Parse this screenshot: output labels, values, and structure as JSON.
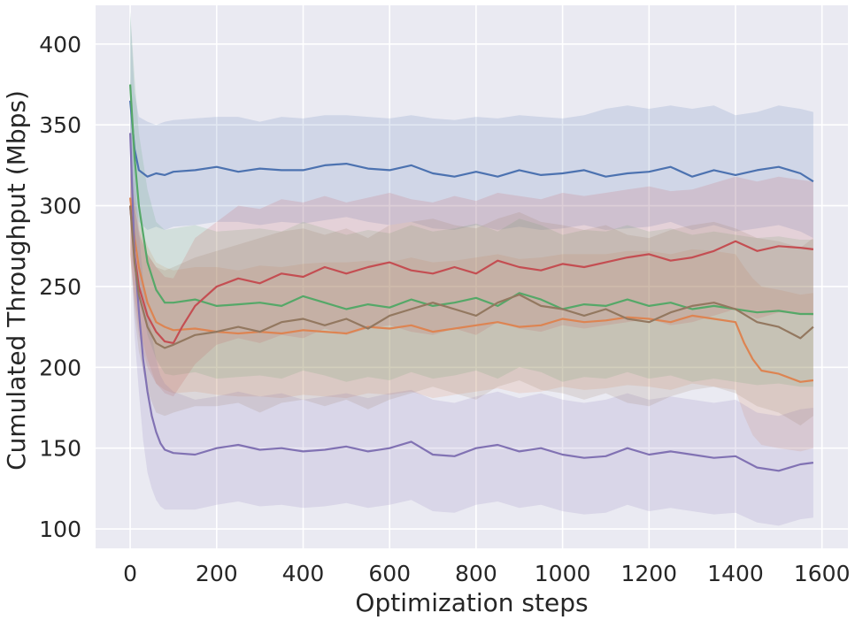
{
  "chart_data": {
    "type": "line",
    "title": "",
    "xlabel": "Optimization steps",
    "ylabel": "Cumulated Throughput (Mbps)",
    "xlim": [
      -80,
      1660
    ],
    "ylim": [
      88,
      424
    ],
    "xticks": [
      0,
      200,
      400,
      600,
      800,
      1000,
      1200,
      1400,
      1600
    ],
    "yticks": [
      100,
      150,
      200,
      250,
      300,
      350,
      400
    ],
    "grid": true,
    "legend": "none",
    "background_color": "#eaeaf2",
    "series": [
      {
        "color": "#4c72b0",
        "x": [
          0,
          10,
          20,
          40,
          60,
          80,
          100,
          150,
          200,
          250,
          300,
          350,
          400,
          450,
          500,
          550,
          600,
          650,
          700,
          750,
          800,
          850,
          900,
          950,
          1000,
          1050,
          1100,
          1150,
          1200,
          1250,
          1300,
          1350,
          1400,
          1450,
          1500,
          1550,
          1580
        ],
        "y": [
          365,
          335,
          322,
          318,
          320,
          319,
          321,
          322,
          324,
          321,
          323,
          322,
          322,
          325,
          326,
          323,
          322,
          325,
          320,
          318,
          321,
          318,
          322,
          319,
          320,
          322,
          318,
          320,
          321,
          324,
          318,
          322,
          319,
          322,
          324,
          320,
          315
        ],
        "upper": [
          420,
          370,
          355,
          352,
          350,
          352,
          353,
          354,
          355,
          355,
          352,
          355,
          354,
          356,
          356,
          355,
          354,
          356,
          354,
          353,
          355,
          354,
          356,
          355,
          354,
          356,
          360,
          362,
          360,
          362,
          360,
          362,
          356,
          358,
          362,
          360,
          358
        ],
        "lower": [
          330,
          300,
          290,
          285,
          287,
          285,
          287,
          288,
          290,
          290,
          288,
          290,
          289,
          291,
          293,
          290,
          288,
          290,
          286,
          285,
          288,
          285,
          287,
          285,
          286,
          288,
          285,
          286,
          287,
          290,
          285,
          288,
          284,
          286,
          288,
          284,
          280
        ]
      },
      {
        "color": "#dd8452",
        "x": [
          0,
          10,
          20,
          40,
          60,
          80,
          100,
          150,
          200,
          250,
          300,
          350,
          400,
          450,
          500,
          550,
          600,
          650,
          700,
          750,
          800,
          850,
          900,
          950,
          1000,
          1050,
          1100,
          1150,
          1200,
          1250,
          1300,
          1350,
          1400,
          1420,
          1440,
          1460,
          1500,
          1550,
          1580
        ],
        "y": [
          305,
          280,
          262,
          240,
          228,
          225,
          223,
          224,
          222,
          221,
          222,
          221,
          223,
          222,
          221,
          225,
          224,
          226,
          222,
          224,
          226,
          228,
          225,
          226,
          230,
          228,
          229,
          231,
          230,
          228,
          232,
          230,
          228,
          215,
          205,
          198,
          196,
          191,
          192
        ],
        "upper": [
          330,
          305,
          290,
          275,
          265,
          262,
          260,
          262,
          262,
          260,
          263,
          262,
          264,
          265,
          265,
          266,
          265,
          268,
          265,
          266,
          268,
          270,
          267,
          268,
          270,
          270,
          270,
          272,
          272,
          270,
          273,
          272,
          270,
          262,
          255,
          250,
          248,
          245,
          246
        ],
        "lower": [
          270,
          245,
          225,
          205,
          190,
          186,
          184,
          185,
          183,
          182,
          182,
          181,
          183,
          182,
          181,
          184,
          183,
          185,
          181,
          183,
          185,
          187,
          184,
          185,
          188,
          186,
          187,
          189,
          188,
          186,
          190,
          188,
          186,
          170,
          158,
          152,
          150,
          148,
          150
        ]
      },
      {
        "color": "#55a868",
        "x": [
          0,
          10,
          20,
          40,
          60,
          80,
          100,
          150,
          200,
          250,
          300,
          350,
          400,
          450,
          500,
          550,
          600,
          650,
          700,
          750,
          800,
          850,
          900,
          950,
          1000,
          1050,
          1100,
          1150,
          1200,
          1250,
          1300,
          1350,
          1400,
          1450,
          1500,
          1550,
          1580
        ],
        "y": [
          375,
          330,
          300,
          265,
          248,
          240,
          240,
          242,
          238,
          239,
          240,
          238,
          244,
          240,
          236,
          239,
          237,
          242,
          238,
          240,
          243,
          238,
          246,
          242,
          236,
          239,
          238,
          242,
          238,
          240,
          236,
          238,
          236,
          234,
          235,
          233,
          233
        ],
        "upper": [
          420,
          380,
          345,
          310,
          290,
          285,
          286,
          288,
          284,
          285,
          286,
          284,
          290,
          286,
          282,
          285,
          283,
          288,
          284,
          286,
          289,
          284,
          292,
          288,
          282,
          285,
          284,
          288,
          284,
          286,
          282,
          284,
          282,
          280,
          281,
          279,
          279
        ],
        "lower": [
          320,
          280,
          255,
          220,
          205,
          196,
          195,
          197,
          193,
          194,
          195,
          193,
          198,
          195,
          191,
          194,
          192,
          197,
          193,
          195,
          198,
          193,
          200,
          197,
          191,
          194,
          193,
          197,
          193,
          195,
          191,
          193,
          191,
          189,
          190,
          188,
          188
        ]
      },
      {
        "color": "#c44e52",
        "x": [
          0,
          10,
          20,
          40,
          60,
          80,
          100,
          120,
          150,
          200,
          250,
          300,
          350,
          400,
          450,
          500,
          550,
          600,
          650,
          700,
          750,
          800,
          850,
          900,
          950,
          1000,
          1050,
          1100,
          1150,
          1200,
          1250,
          1300,
          1350,
          1400,
          1450,
          1500,
          1550,
          1580
        ],
        "y": [
          300,
          270,
          250,
          232,
          222,
          216,
          215,
          225,
          238,
          250,
          255,
          252,
          258,
          256,
          262,
          258,
          262,
          265,
          260,
          258,
          262,
          258,
          266,
          262,
          260,
          264,
          262,
          265,
          268,
          270,
          266,
          268,
          272,
          278,
          272,
          275,
          274,
          273
        ],
        "upper": [
          320,
          300,
          285,
          270,
          262,
          256,
          255,
          265,
          280,
          290,
          300,
          298,
          304,
          302,
          306,
          302,
          305,
          308,
          304,
          302,
          306,
          303,
          308,
          306,
          304,
          308,
          306,
          308,
          310,
          312,
          309,
          310,
          314,
          318,
          315,
          318,
          316,
          315
        ],
        "lower": [
          270,
          240,
          220,
          200,
          190,
          184,
          182,
          190,
          202,
          214,
          218,
          215,
          220,
          218,
          224,
          220,
          224,
          226,
          222,
          220,
          224,
          220,
          228,
          224,
          222,
          226,
          224,
          226,
          228,
          230,
          226,
          228,
          232,
          236,
          230,
          234,
          233,
          232
        ]
      },
      {
        "color": "#8172b3",
        "x": [
          0,
          10,
          20,
          30,
          40,
          50,
          60,
          70,
          80,
          100,
          150,
          200,
          250,
          300,
          350,
          400,
          450,
          500,
          550,
          600,
          650,
          700,
          750,
          800,
          850,
          900,
          950,
          1000,
          1050,
          1100,
          1150,
          1200,
          1250,
          1300,
          1350,
          1400,
          1450,
          1500,
          1550,
          1580
        ],
        "y": [
          345,
          270,
          235,
          205,
          185,
          170,
          160,
          153,
          149,
          147,
          146,
          150,
          152,
          149,
          150,
          148,
          149,
          151,
          148,
          150,
          154,
          146,
          145,
          150,
          152,
          148,
          150,
          146,
          144,
          145,
          150,
          146,
          148,
          146,
          144,
          145,
          138,
          136,
          140,
          141
        ],
        "upper": [
          380,
          320,
          285,
          255,
          235,
          220,
          205,
          195,
          190,
          185,
          180,
          182,
          185,
          182,
          184,
          180,
          182,
          184,
          181,
          184,
          186,
          180,
          178,
          182,
          185,
          181,
          184,
          180,
          178,
          180,
          184,
          180,
          182,
          180,
          178,
          180,
          172,
          170,
          174,
          175
        ],
        "lower": [
          300,
          220,
          185,
          155,
          135,
          125,
          118,
          114,
          112,
          112,
          112,
          115,
          117,
          114,
          115,
          113,
          114,
          116,
          113,
          115,
          118,
          111,
          110,
          115,
          117,
          113,
          115,
          111,
          109,
          110,
          115,
          111,
          113,
          111,
          109,
          110,
          104,
          102,
          106,
          107
        ]
      },
      {
        "color": "#937860",
        "x": [
          0,
          10,
          20,
          40,
          60,
          80,
          100,
          150,
          200,
          250,
          300,
          350,
          400,
          450,
          500,
          550,
          600,
          650,
          700,
          750,
          800,
          850,
          900,
          950,
          1000,
          1050,
          1100,
          1150,
          1200,
          1250,
          1300,
          1350,
          1400,
          1450,
          1500,
          1550,
          1580
        ],
        "y": [
          300,
          265,
          245,
          225,
          215,
          212,
          214,
          220,
          222,
          225,
          222,
          228,
          230,
          226,
          230,
          224,
          232,
          236,
          240,
          236,
          232,
          240,
          245,
          238,
          236,
          232,
          236,
          230,
          228,
          234,
          238,
          240,
          236,
          228,
          225,
          218,
          225
        ],
        "upper": [
          330,
          300,
          282,
          270,
          262,
          260,
          262,
          268,
          272,
          276,
          280,
          284,
          286,
          282,
          286,
          280,
          288,
          290,
          292,
          288,
          286,
          292,
          296,
          290,
          288,
          285,
          288,
          282,
          280,
          285,
          288,
          290,
          286,
          280,
          278,
          274,
          280
        ],
        "lower": [
          270,
          232,
          210,
          185,
          172,
          170,
          172,
          176,
          176,
          178,
          172,
          178,
          180,
          176,
          180,
          174,
          180,
          184,
          188,
          184,
          180,
          188,
          192,
          186,
          184,
          180,
          184,
          178,
          176,
          182,
          186,
          188,
          184,
          176,
          172,
          164,
          170
        ]
      }
    ]
  }
}
